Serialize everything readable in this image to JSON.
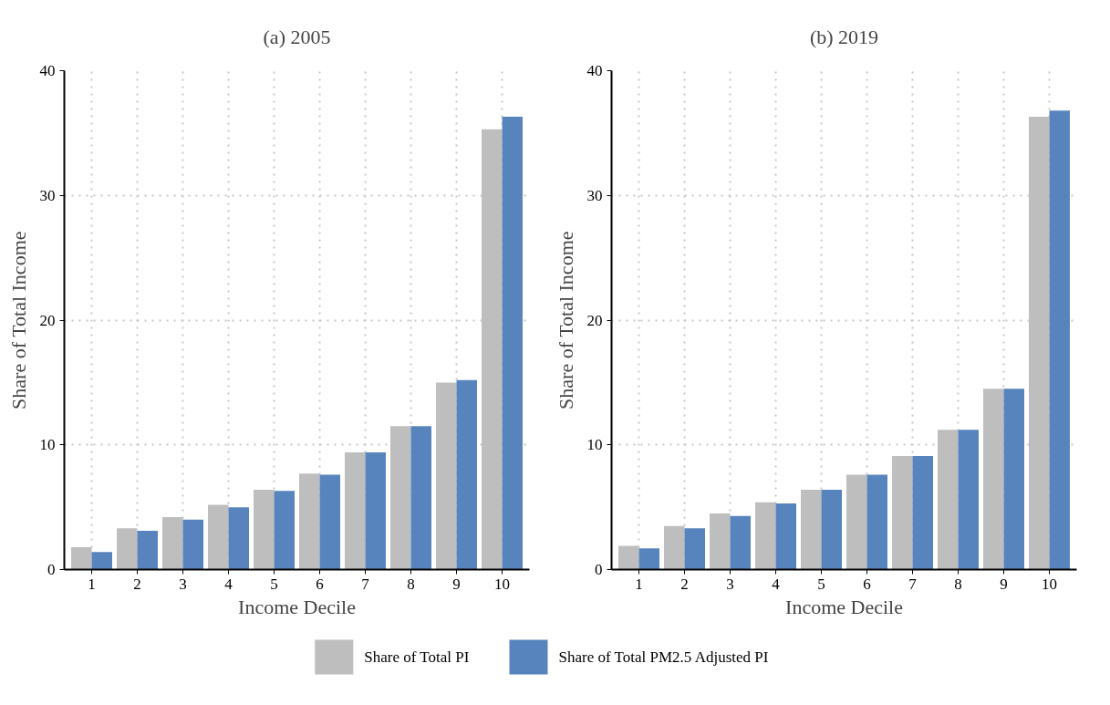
{
  "chart_data": [
    {
      "type": "bar",
      "title": "(a) 2005",
      "xlabel": "Income Decile",
      "ylabel": "Share of Total Income",
      "categories": [
        "1",
        "2",
        "3",
        "4",
        "5",
        "6",
        "7",
        "8",
        "9",
        "10"
      ],
      "series": [
        {
          "name": "Share of Total PI",
          "color": "#bebebe",
          "values": [
            1.8,
            3.3,
            4.2,
            5.2,
            6.4,
            7.7,
            9.4,
            11.5,
            15.0,
            35.3
          ]
        },
        {
          "name": "Share of Total PM2.5 Adjusted PI",
          "color": "#5884bd",
          "values": [
            1.4,
            3.1,
            4.0,
            5.0,
            6.3,
            7.6,
            9.4,
            11.5,
            15.2,
            36.3
          ]
        }
      ],
      "ylim": [
        0,
        40
      ],
      "yticks": [
        0,
        10,
        20,
        30,
        40
      ],
      "grid": true,
      "legend": "bottom"
    },
    {
      "type": "bar",
      "title": "(b) 2019",
      "xlabel": "Income Decile",
      "ylabel": "Share of Total Income",
      "categories": [
        "1",
        "2",
        "3",
        "4",
        "5",
        "6",
        "7",
        "8",
        "9",
        "10"
      ],
      "series": [
        {
          "color": "#bebebe",
          "values": [
            1.9,
            3.5,
            4.5,
            5.4,
            6.4,
            7.6,
            9.1,
            11.2,
            14.5,
            36.3
          ]
        },
        {
          "color": "#5884bd",
          "values": [
            1.7,
            3.3,
            4.3,
            5.3,
            6.4,
            7.6,
            9.1,
            11.2,
            14.5,
            36.8
          ]
        }
      ],
      "ylim": [
        0,
        40
      ],
      "yticks": [
        0,
        10,
        20,
        30,
        40
      ],
      "grid": true
    }
  ]
}
